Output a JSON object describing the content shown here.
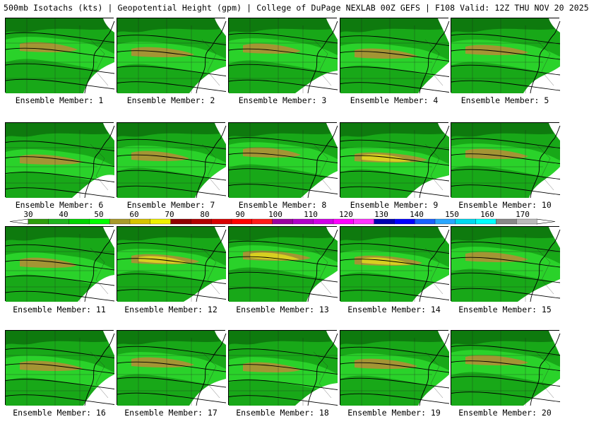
{
  "header": {
    "title": "500mb Isotachs (kts) | Geopotential Height (gpm) | College of DuPage NEXLAB   00Z GEFS | F108 Valid: 12Z THU NOV 20 2025"
  },
  "members": [
    {
      "label": "Ensemble Member: 1",
      "jet": 1
    },
    {
      "label": "Ensemble Member: 2",
      "jet": 2
    },
    {
      "label": "Ensemble Member: 3",
      "jet": 1
    },
    {
      "label": "Ensemble Member: 4",
      "jet": 2
    },
    {
      "label": "Ensemble Member: 5",
      "jet": 2
    },
    {
      "label": "Ensemble Member: 6",
      "jet": 2
    },
    {
      "label": "Ensemble Member: 7",
      "jet": 1
    },
    {
      "label": "Ensemble Member: 8",
      "jet": 1
    },
    {
      "label": "Ensemble Member: 9",
      "jet": 4
    },
    {
      "label": "Ensemble Member: 10",
      "jet": 2
    },
    {
      "label": "Ensemble Member: 11",
      "jet": 1
    },
    {
      "label": "Ensemble Member: 12",
      "jet": 3
    },
    {
      "label": "Ensemble Member: 13",
      "jet": 3
    },
    {
      "label": "Ensemble Member: 14",
      "jet": 3
    },
    {
      "label": "Ensemble Member: 15",
      "jet": 2
    },
    {
      "label": "Ensemble Member: 16",
      "jet": 2
    },
    {
      "label": "Ensemble Member: 17",
      "jet": 2
    },
    {
      "label": "Ensemble Member: 18",
      "jet": 1
    },
    {
      "label": "Ensemble Member: 19",
      "jet": 2
    },
    {
      "label": "Ensemble Member: 20",
      "jet": 2
    }
  ],
  "colorbar": {
    "labels": [
      "30",
      "40",
      "50",
      "60",
      "70",
      "80",
      "90",
      "100",
      "110",
      "120",
      "130",
      "140",
      "150",
      "160",
      "170"
    ],
    "colors": [
      "#2e9e0c",
      "#1fb51f",
      "#00d400",
      "#00ff00",
      "#a89a2a",
      "#d7c300",
      "#f0f000",
      "#900000",
      "#b00000",
      "#d80000",
      "#ff0000",
      "#ff1a1a",
      "#9b00a0",
      "#b000c8",
      "#d000e6",
      "#ff00ff",
      "#ff33ff",
      "#0000b0",
      "#0000ff",
      "#1a60ff",
      "#2aa6ff",
      "#00d8f0",
      "#00ffff",
      "#888888",
      "#bbbbbb"
    ]
  },
  "colors": {
    "land_green": "#18a818",
    "dark_green": "#0e7a0e",
    "bright_green": "#2cd62c",
    "olive": "#a39534",
    "yellow": "#d8cf20",
    "background": "#ffffff"
  }
}
